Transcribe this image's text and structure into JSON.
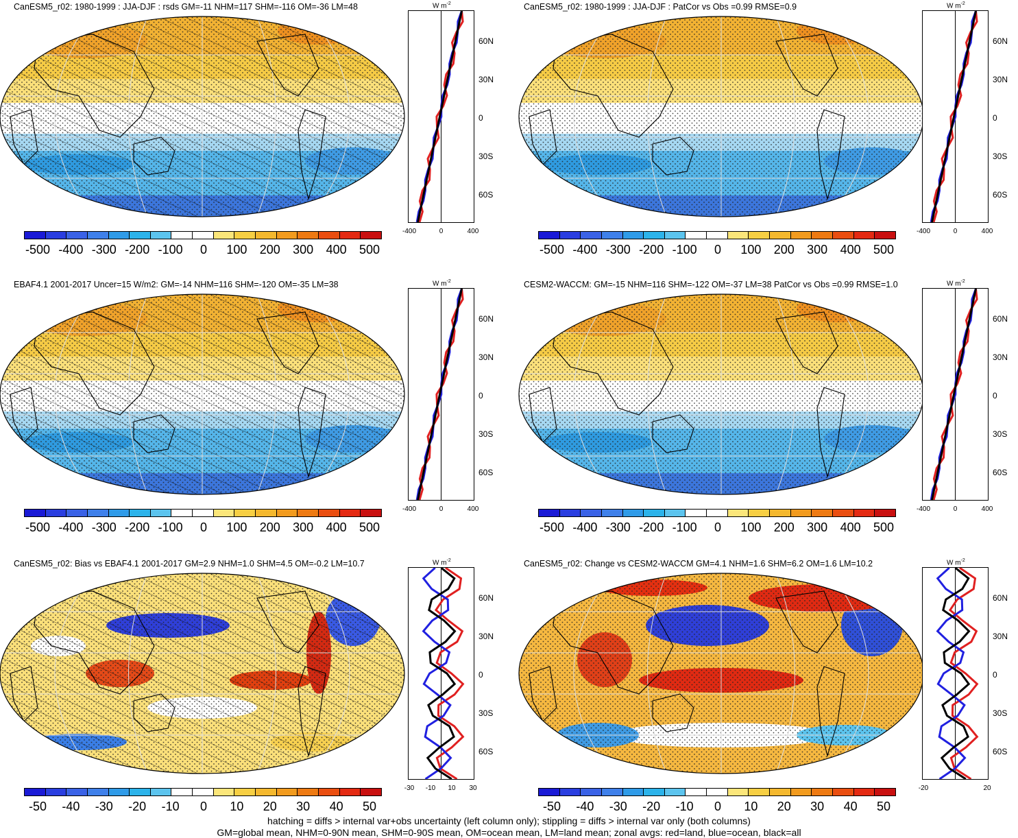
{
  "panels": [
    {
      "title": "CanESM5_r02: 1980-1999 : JJA-DJF : rsds GM=-11 NHM=117 SHM=-116 OM=-36 LM=48",
      "style": "mean",
      "hatch": true,
      "colorbar_ticks": [
        "-500",
        "-400",
        "-300",
        "-200",
        "-100",
        "0",
        "100",
        "200",
        "300",
        "400",
        "500"
      ],
      "zonal_x_ticks": [
        "-400",
        "0",
        "400"
      ],
      "zonal_y_ticks": [
        "60N",
        "30N",
        "0",
        "30S",
        "60S"
      ],
      "zonal_unit": "W m",
      "zonal_unit_exp": "-2"
    },
    {
      "title": "CanESM5_r02: 1980-1999 : JJA-DJF : PatCor vs Obs =0.99 RMSE=0.9",
      "style": "mean",
      "hatch": false,
      "colorbar_ticks": [
        "-500",
        "-400",
        "-300",
        "-200",
        "-100",
        "0",
        "100",
        "200",
        "300",
        "400",
        "500"
      ],
      "zonal_x_ticks": [
        "-400",
        "0",
        "400"
      ],
      "zonal_y_ticks": [
        "60N",
        "30N",
        "0",
        "30S",
        "60S"
      ],
      "zonal_unit": "W m",
      "zonal_unit_exp": "-2"
    },
    {
      "title": "EBAF4.1 2001-2017 Uncer=15 W/m2: GM=-14 NHM=116 SHM=-120 OM=-35 LM=38",
      "style": "mean",
      "hatch": true,
      "colorbar_ticks": [
        "-500",
        "-400",
        "-300",
        "-200",
        "-100",
        "0",
        "100",
        "200",
        "300",
        "400",
        "500"
      ],
      "zonal_x_ticks": [
        "-400",
        "0",
        "400"
      ],
      "zonal_y_ticks": [
        "60N",
        "30N",
        "0",
        "30S",
        "60S"
      ],
      "zonal_unit": "W m",
      "zonal_unit_exp": "-2"
    },
    {
      "title": "CESM2-WACCM: GM=-15 NHM=116 SHM=-122 OM=-37 LM=38 PatCor vs Obs =0.99 RMSE=1.0",
      "style": "mean",
      "hatch": false,
      "colorbar_ticks": [
        "-500",
        "-400",
        "-300",
        "-200",
        "-100",
        "0",
        "100",
        "200",
        "300",
        "400",
        "500"
      ],
      "zonal_x_ticks": [
        "-400",
        "0",
        "400"
      ],
      "zonal_y_ticks": [
        "60N",
        "30N",
        "0",
        "30S",
        "60S"
      ],
      "zonal_unit": "W m",
      "zonal_unit_exp": "-2"
    },
    {
      "title": "CanESM5_r02: Bias vs EBAF4.1 2001-2017 GM=2.9 NHM=1.0 SHM=4.5 OM=-0.2 LM=10.7",
      "style": "diff",
      "hatch": true,
      "colorbar_ticks": [
        "-50",
        "-40",
        "-30",
        "-20",
        "-10",
        "0",
        "10",
        "20",
        "30",
        "40",
        "50"
      ],
      "zonal_x_ticks": [
        "-30",
        "-10",
        "10",
        "30"
      ],
      "zonal_y_ticks": [
        "60N",
        "30N",
        "0",
        "30S",
        "60S"
      ],
      "zonal_unit": "W m",
      "zonal_unit_exp": "-2"
    },
    {
      "title": "CanESM5_r02: Change vs CESM2-WACCM GM=4.1 NHM=1.6 SHM=6.2 OM=1.6 LM=10.2",
      "style": "change",
      "hatch": false,
      "colorbar_ticks": [
        "-50",
        "-40",
        "-30",
        "-20",
        "-10",
        "0",
        "10",
        "20",
        "30",
        "40",
        "50"
      ],
      "zonal_x_ticks": [
        "-20",
        "20"
      ],
      "zonal_y_ticks": [
        "60N",
        "30N",
        "0",
        "30S",
        "60S"
      ],
      "zonal_unit": "W m",
      "zonal_unit_exp": "-2"
    }
  ],
  "colors": {
    "colorbar": [
      "#1a1ad6",
      "#2a3ee0",
      "#3a62e6",
      "#3f80ea",
      "#2f9be8",
      "#2cb3ea",
      "#5cc4ee",
      "#ffffff",
      "#ffffff",
      "#fbe67a",
      "#f7cf43",
      "#f4b82e",
      "#f29b1e",
      "#ee7a12",
      "#ea4e10",
      "#e42a12",
      "#c91010"
    ],
    "land_line": "#e02020",
    "ocean_line": "#2020e0",
    "all_line": "#000000"
  },
  "footer": {
    "line1": "hatching = diffs > internal var+obs uncertainty (left column only); stippling = diffs > internal var only (both columns)",
    "line2": "GM=global mean, NHM=0-90N mean, SHM=0-90S mean, OM=ocean mean, LM=land mean; zonal avgs: red=land, blue=ocean, black=all"
  }
}
